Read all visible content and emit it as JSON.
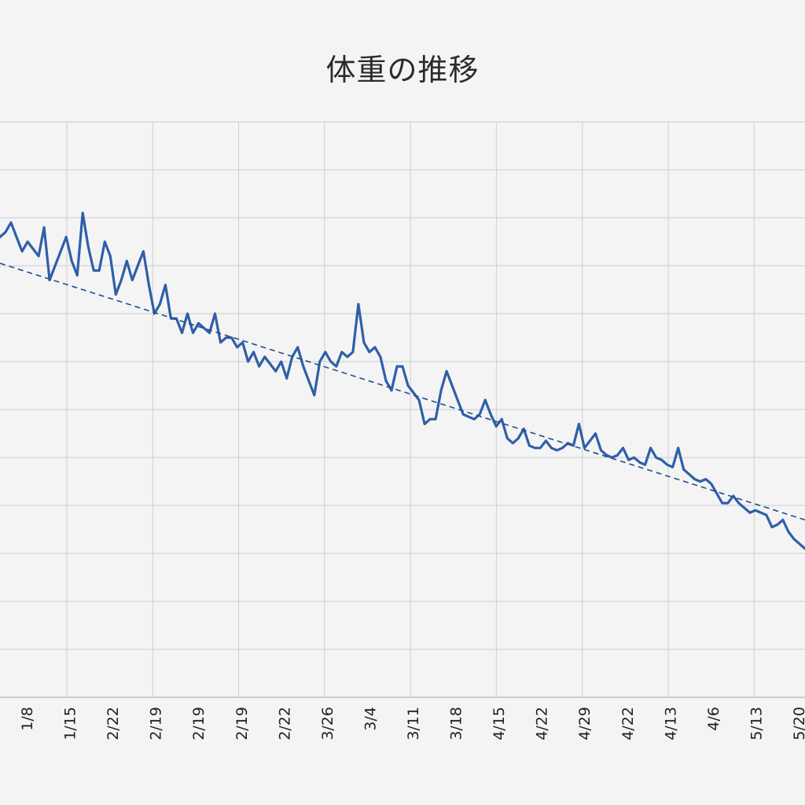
{
  "chart_data": {
    "type": "line",
    "title": "体重の推移",
    "xlabel": "",
    "ylabel": "",
    "grid": true,
    "legend": "none",
    "colors": {
      "series": "#2f5fa8",
      "trend": "#1f4f8c",
      "grid": "#d4d4d6",
      "background": "#f4f4f5"
    },
    "x_tick_labels": [
      "1/8",
      "1/15",
      "2/22",
      "2/19",
      "2/19",
      "2/19",
      "2/22",
      "3/26",
      "3/4",
      "3/11",
      "3/18",
      "4/15",
      "4/22",
      "4/29",
      "4/22",
      "4/13",
      "4/6",
      "5/13",
      "5/20"
    ],
    "x_range": [
      0,
      166
    ],
    "y_range": [
      0,
      12
    ],
    "series": [
      {
        "style": "solid",
        "values": [
          9.6,
          9.7,
          9.9,
          9.6,
          9.3,
          9.5,
          9.35,
          9.2,
          9.8,
          8.7,
          9.0,
          9.3,
          9.6,
          9.1,
          8.8,
          10.1,
          9.4,
          8.9,
          8.9,
          9.5,
          9.2,
          8.4,
          8.7,
          9.1,
          8.7,
          9.0,
          9.3,
          8.6,
          8.0,
          8.2,
          8.6,
          7.9,
          7.9,
          7.6,
          8.0,
          7.6,
          7.8,
          7.7,
          7.6,
          8.0,
          7.4,
          7.5,
          7.5,
          7.3,
          7.4,
          7.0,
          7.2,
          6.9,
          7.1,
          6.95,
          6.8,
          7.0,
          6.65,
          7.1,
          7.3,
          6.9,
          6.6,
          6.3,
          7.0,
          7.2,
          7.0,
          6.9,
          7.2,
          7.1,
          7.2,
          8.2,
          7.4,
          7.2,
          7.3,
          7.1,
          6.6,
          6.4,
          6.9,
          6.9,
          6.5,
          6.35,
          6.2,
          5.7,
          5.8,
          5.8,
          6.4,
          6.8,
          6.5,
          6.2,
          5.9,
          5.85,
          5.8,
          5.9,
          6.2,
          5.9,
          5.65,
          5.8,
          5.4,
          5.3,
          5.4,
          5.6,
          5.25,
          5.2,
          5.2,
          5.35,
          5.2,
          5.15,
          5.2,
          5.3,
          5.25,
          5.7,
          5.2,
          5.35,
          5.5,
          5.15,
          5.05,
          5.0,
          5.05,
          5.2,
          4.95,
          5.0,
          4.9,
          4.85,
          5.2,
          5.0,
          4.95,
          4.85,
          4.8,
          5.2,
          4.75,
          4.65,
          4.55,
          4.5,
          4.55,
          4.45,
          4.25,
          4.05,
          4.05,
          4.2,
          4.05,
          3.95,
          3.85,
          3.9,
          3.85,
          3.8,
          3.55,
          3.6,
          3.7,
          3.45,
          3.3,
          3.2,
          3.1
        ]
      },
      {
        "style": "dashed",
        "values": [
          9.05,
          3.7
        ]
      }
    ]
  }
}
